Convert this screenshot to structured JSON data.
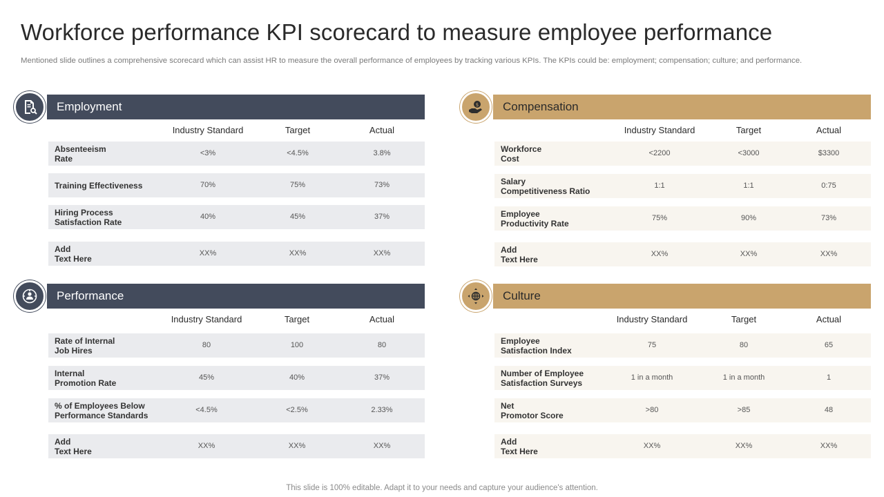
{
  "title": "Workforce performance KPI scorecard to measure employee performance",
  "subtitle": "Mentioned slide outlines a comprehensive scorecard which can assist HR to measure the overall performance of employees by tracking various KPIs. The KPIs could be: employment; compensation; culture; and performance.",
  "footer": "This slide is 100% editable. Adapt it to your needs and capture your audience's attention.",
  "colors": {
    "dark": "#434b5c",
    "gold": "#c9a46d"
  },
  "sections": {
    "employment": {
      "title": "Employment",
      "icon": "document-search-icon",
      "columns": [
        "Industry Standard",
        "Target",
        "Actual"
      ],
      "rows": [
        {
          "label": "Absenteeism\nRate",
          "values": [
            "<3%",
            "<4.5%",
            "3.8%"
          ]
        },
        {
          "label": "Training Effectiveness",
          "values": [
            "70%",
            "75%",
            "73%"
          ]
        },
        {
          "label": "Hiring Process\nSatisfaction Rate",
          "values": [
            "40%",
            "45%",
            "37%"
          ]
        },
        {
          "label": "Add\nText Here",
          "values": [
            "XX%",
            "XX%",
            "XX%"
          ]
        }
      ]
    },
    "compensation": {
      "title": "Compensation",
      "icon": "money-hand-icon",
      "columns": [
        "Industry Standard",
        "Target",
        "Actual"
      ],
      "rows": [
        {
          "label": "Workforce\nCost",
          "values": [
            "<2200",
            "<3000",
            "$3300"
          ]
        },
        {
          "label": "Salary\nCompetitiveness Ratio",
          "values": [
            "1:1",
            "1:1",
            "0:75"
          ]
        },
        {
          "label": "Employee\nProductivity  Rate",
          "values": [
            "75%",
            "90%",
            "73%"
          ]
        },
        {
          "label": "Add\nText Here",
          "values": [
            "XX%",
            "XX%",
            "XX%"
          ]
        }
      ]
    },
    "performance": {
      "title": "Performance",
      "icon": "person-gauge-icon",
      "columns": [
        "Industry Standard",
        "Target",
        "Actual"
      ],
      "rows": [
        {
          "label": "Rate of Internal\nJob Hires",
          "values": [
            "80",
            "100",
            "80"
          ]
        },
        {
          "label": "Internal\nPromotion Rate",
          "values": [
            "45%",
            "40%",
            "37%"
          ]
        },
        {
          "label": "% of Employees Below\nPerformance Standards",
          "values": [
            "<4.5%",
            "<2.5%",
            "2.33%"
          ]
        },
        {
          "label": "Add\nText Here",
          "values": [
            "XX%",
            "XX%",
            "XX%"
          ]
        }
      ]
    },
    "culture": {
      "title": "Culture",
      "icon": "globe-arrows-icon",
      "columns": [
        "Industry Standard",
        "Target",
        "Actual"
      ],
      "rows": [
        {
          "label": "Employee\nSatisfaction Index",
          "values": [
            "75",
            "80",
            "65"
          ]
        },
        {
          "label": "Number of Employee\nSatisfaction Surveys",
          "values": [
            "1 in a month",
            "1 in a month",
            "1"
          ]
        },
        {
          "label": "Net\nPromotor Score",
          "values": [
            ">80",
            ">85",
            "48"
          ]
        },
        {
          "label": "Add\nText Here",
          "values": [
            "XX%",
            "XX%",
            "XX%"
          ]
        }
      ]
    }
  }
}
